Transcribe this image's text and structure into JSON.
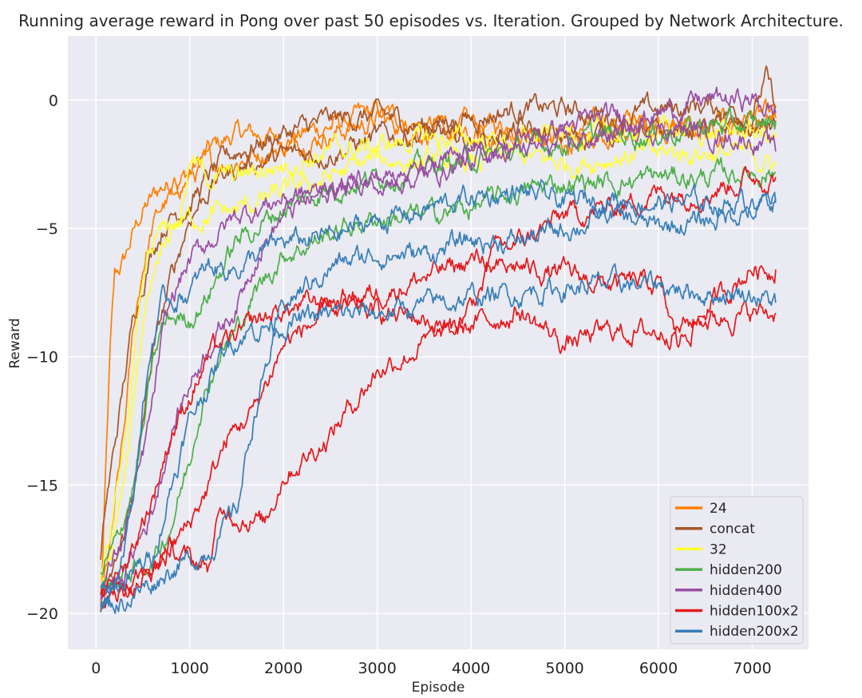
{
  "chart_data": {
    "type": "line",
    "title": "Running average reward in Pong over past 50 episodes vs. Iteration. Grouped by Network Architecture.",
    "xlabel": "Episode",
    "ylabel": "Reward",
    "xlim": [
      -300,
      7600
    ],
    "ylim": [
      -21.4,
      2.5
    ],
    "xticks": [
      0,
      1000,
      2000,
      3000,
      4000,
      5000,
      6000,
      7000
    ],
    "yticks": [
      0,
      -5,
      -10,
      -15,
      -20
    ],
    "xtick_labels": [
      "0",
      "1000",
      "2000",
      "3000",
      "4000",
      "5000",
      "6000",
      "7000"
    ],
    "ytick_labels": [
      "0",
      "−5",
      "−10",
      "−15",
      "−20"
    ],
    "grid": true,
    "legend_position": "bottom-right",
    "series": [
      {
        "name": "24",
        "color": "#ff7f00",
        "runs": [
          {
            "x": [
              50,
              100,
              150,
              200,
              300,
              400,
              500,
              700,
              900,
              1000,
              1200,
              1500,
              2000,
              2500,
              3000,
              3500,
              4000,
              4500,
              5000,
              5500,
              6000,
              6500,
              7000,
              7250
            ],
            "y": [
              -20,
              -15,
              -10,
              -7,
              -6.3,
              -5.2,
              -4.3,
              -3.4,
              -3,
              -2.8,
              -2,
              -1.3,
              -1.5,
              -1,
              -0.5,
              -1,
              -1,
              -1,
              -1.4,
              -0.8,
              -1,
              -1.1,
              -0.6,
              -0.7
            ]
          },
          {
            "x": [
              50,
              100,
              150,
              200,
              300,
              400,
              500,
              600,
              700,
              800,
              1000,
              1200,
              1500,
              2000,
              2500,
              3000,
              3500,
              4000,
              4500,
              5000,
              5500,
              6000,
              6500,
              7000,
              7250
            ],
            "y": [
              -19.5,
              -18.5,
              -17.5,
              -16,
              -13,
              -9,
              -6.5,
              -5,
              -4.2,
              -3.8,
              -3,
              -2.6,
              -2.3,
              -1.8,
              -1.3,
              -0.8,
              -1.2,
              -1.6,
              -1.3,
              -1.8,
              -1.2,
              -1,
              -1.2,
              -1,
              -0.5
            ]
          }
        ]
      },
      {
        "name": "concat",
        "color": "#a65628",
        "runs": [
          {
            "x": [
              50,
              100,
              200,
              300,
              400,
              500,
              600,
              700,
              800,
              1000,
              1200,
              1500,
              2000,
              2500,
              3000,
              3500,
              4000,
              4500,
              5000,
              5500,
              6000,
              6500,
              7000,
              7150,
              7250
            ],
            "y": [
              -18,
              -16,
              -13.5,
              -11,
              -8.5,
              -7,
              -5.8,
              -5,
              -4.5,
              -4,
              -3,
              -2,
              -1.3,
              -0.8,
              -0.6,
              -1,
              -0.7,
              -0.3,
              -0.4,
              -0.6,
              -0.4,
              -0.2,
              -0.5,
              0.8,
              -0.3
            ]
          },
          {
            "x": [
              50,
              150,
              300,
              450,
              600,
              800,
              1000,
              1300,
              1600,
              2000,
              2500,
              3000,
              3500,
              4000,
              4500,
              5000,
              5500,
              6000,
              6500,
              7000,
              7250
            ],
            "y": [
              -19.5,
              -19,
              -17,
              -14,
              -10,
              -7,
              -4.5,
              -3,
              -2.5,
              -2.2,
              -2,
              -1.5,
              -1.3,
              -1.6,
              -1.2,
              -1.5,
              -1.2,
              -1.4,
              -1,
              -1.2,
              -1
            ]
          }
        ]
      },
      {
        "name": "32",
        "color": "#ffff33",
        "runs": [
          {
            "x": [
              50,
              150,
              250,
              350,
              450,
              550,
              650,
              750,
              850,
              1000,
              1200,
              1500,
              2000,
              2500,
              3000,
              3500,
              4000,
              4500,
              5000,
              5500,
              6000,
              6500,
              7000,
              7250
            ],
            "y": [
              -18.5,
              -17,
              -15,
              -12,
              -9,
              -6.5,
              -5.5,
              -5,
              -4.8,
              -4.6,
              -4.5,
              -4.3,
              -3.6,
              -3,
              -2.3,
              -2.4,
              -2.5,
              -2.2,
              -2.5,
              -2.2,
              -2.1,
              -2,
              -2.2,
              -2.5
            ]
          },
          {
            "x": [
              50,
              150,
              250,
              350,
              450,
              550,
              650,
              750,
              900,
              1000,
              1200,
              1500,
              2000,
              2500,
              3000,
              3500,
              4000,
              4500,
              5000,
              5500,
              6000,
              6500,
              7000,
              7250
            ],
            "y": [
              -19,
              -18,
              -16,
              -13.5,
              -10,
              -7.5,
              -6,
              -5,
              -4.5,
              -2.3,
              -3,
              -3,
              -2.5,
              -2,
              -1.8,
              -1.5,
              -1.5,
              -1.6,
              -1.3,
              -1.4,
              -1.1,
              -1.3,
              -1.2,
              -1.5
            ]
          }
        ]
      },
      {
        "name": "hidden200",
        "color": "#4daf4a",
        "runs": [
          {
            "x": [
              50,
              200,
              400,
              500,
              600,
              700,
              800,
              900,
              1000,
              1200,
              1500,
              2000,
              2500,
              3000,
              3500,
              4000,
              4500,
              5000,
              5500,
              6000,
              6500,
              7000,
              7250
            ],
            "y": [
              -18.5,
              -17.5,
              -15,
              -13,
              -10.5,
              -9,
              -8.5,
              -8.5,
              -8.5,
              -7.5,
              -5.5,
              -4.2,
              -3.4,
              -3,
              -2.6,
              -2.3,
              -2,
              -1.6,
              -1.4,
              -1.3,
              -1,
              -1,
              -0.8
            ]
          },
          {
            "x": [
              50,
              300,
              600,
              800,
              1000,
              1100,
              1300,
              1500,
              1700,
              2000,
              2500,
              3000,
              3500,
              4000,
              4500,
              5000,
              5500,
              6000,
              6500,
              7000,
              7250
            ],
            "y": [
              -19,
              -18.5,
              -18,
              -16.5,
              -14,
              -12,
              -10,
              -9,
              -7.5,
              -6,
              -5.2,
              -4.6,
              -4.5,
              -4.2,
              -3.6,
              -3.2,
              -3.2,
              -3,
              -3,
              -2.8,
              -2.8
            ]
          }
        ]
      },
      {
        "name": "hidden400",
        "color": "#984ea3",
        "runs": [
          {
            "x": [
              50,
              300,
              500,
              600,
              700,
              800,
              900,
              1000,
              1200,
              1500,
              2000,
              2500,
              3000,
              3500,
              4000,
              4500,
              5000,
              5500,
              6000,
              6500,
              7000,
              7250
            ],
            "y": [
              -19,
              -17,
              -14,
              -12,
              -9.5,
              -8,
              -7,
              -6.3,
              -5.5,
              -4.5,
              -3.8,
              -3.5,
              -3,
              -3,
              -2.3,
              -1.6,
              -1,
              -0.7,
              -0.5,
              0,
              0,
              -0.5
            ]
          },
          {
            "x": [
              50,
              300,
              600,
              800,
              1000,
              1200,
              1400,
              1500,
              1700,
              2000,
              2500,
              3000,
              3500,
              4000,
              4500,
              5000,
              5500,
              6000,
              6500,
              7000,
              7250
            ],
            "y": [
              -19.3,
              -18.5,
              -16,
              -13,
              -11,
              -9.5,
              -8.5,
              -8,
              -6,
              -4.5,
              -3.5,
              -3,
              -2.8,
              -2.2,
              -2,
              -1.8,
              -1.3,
              -1,
              -1.3,
              -1.5,
              -2
            ]
          }
        ]
      },
      {
        "name": "hidden100x2",
        "color": "#e41a1c",
        "runs": [
          {
            "x": [
              50,
              300,
              600,
              800,
              1000,
              1200,
              1300,
              1400,
              1500,
              1700,
              2000,
              2500,
              3000,
              3500,
              4000,
              4500,
              5000,
              5500,
              6000,
              6500,
              7000,
              7250
            ],
            "y": [
              -19,
              -18.2,
              -15.5,
              -13,
              -11.5,
              -10,
              -9.6,
              -9.5,
              -9.3,
              -8.7,
              -8.2,
              -7.8,
              -7.5,
              -6.9,
              -6.3,
              -5.6,
              -4.5,
              -4.2,
              -3.6,
              -3.5,
              -3,
              -3
            ]
          },
          {
            "x": [
              50,
              300,
              600,
              800,
              1000,
              1200,
              1300,
              1400,
              1600,
              1800,
              2000,
              2200,
              2500,
              3000,
              3500,
              4000,
              4500,
              5000,
              5500,
              6000,
              6500,
              7000,
              7250
            ],
            "y": [
              -19.2,
              -19,
              -18.5,
              -17.5,
              -18,
              -18.2,
              -16.5,
              -16,
              -16.2,
              -16.5,
              -14.5,
              -14,
              -13,
              -10.5,
              -9.5,
              -8.8,
              -8.2,
              -9.5,
              -9,
              -9,
              -8.5,
              -8.3,
              -8.3
            ]
          },
          {
            "x": [
              50,
              400,
              800,
              1000,
              1200,
              1400,
              1700,
              2000,
              2500,
              3000,
              3500,
              3800,
              4000,
              4200,
              4500,
              5000,
              5500,
              6000,
              6200,
              6500,
              7000,
              7250
            ],
            "y": [
              -19.5,
              -19,
              -17.5,
              -16.5,
              -15,
              -13.2,
              -12,
              -9.5,
              -8.2,
              -8.3,
              -8.5,
              -9,
              -8,
              -6.8,
              -6.5,
              -6.8,
              -7.2,
              -7.2,
              -9.5,
              -8.2,
              -6.5,
              -6.6
            ]
          }
        ]
      },
      {
        "name": "hidden200x2",
        "color": "#377eb8",
        "runs": [
          {
            "x": [
              50,
              200,
              400,
              500,
              600,
              700,
              800,
              1000,
              1200,
              1500,
              2000,
              2500,
              3000,
              3500,
              4000,
              4500,
              5000,
              5500,
              6000,
              6500,
              7000,
              7250
            ],
            "y": [
              -19.5,
              -19,
              -15.5,
              -12,
              -9.5,
              -8,
              -7.8,
              -7.5,
              -6.5,
              -6.5,
              -5.6,
              -5.3,
              -4.7,
              -4.3,
              -3.8,
              -3.6,
              -4,
              -3.8,
              -4,
              -4,
              -4,
              -3.8
            ]
          },
          {
            "x": [
              50,
              300,
              600,
              800,
              1000,
              1200,
              1500,
              1700,
              2000,
              2500,
              3000,
              3500,
              4000,
              4500,
              5000,
              5500,
              6000,
              6500,
              7000,
              7250
            ],
            "y": [
              -19.8,
              -19.5,
              -18.8,
              -18.2,
              -18,
              -17.5,
              -16,
              -12,
              -8,
              -6.5,
              -6,
              -6,
              -5.5,
              -5.5,
              -5,
              -4.5,
              -5,
              -4.7,
              -4.2,
              -4
            ]
          },
          {
            "x": [
              50,
              300,
              600,
              800,
              1000,
              1200,
              1400,
              1600,
              1800,
              2000,
              2500,
              3000,
              3500,
              4000,
              4500,
              5000,
              5500,
              6000,
              6500,
              7000,
              7250
            ],
            "y": [
              -19,
              -18.8,
              -17.8,
              -15,
              -12.5,
              -11,
              -9.5,
              -9,
              -8.8,
              -8.7,
              -8.4,
              -8.3,
              -8,
              -7.7,
              -7.5,
              -7.3,
              -7.2,
              -7.2,
              -7.5,
              -7.5,
              -7.9
            ]
          }
        ]
      }
    ]
  }
}
